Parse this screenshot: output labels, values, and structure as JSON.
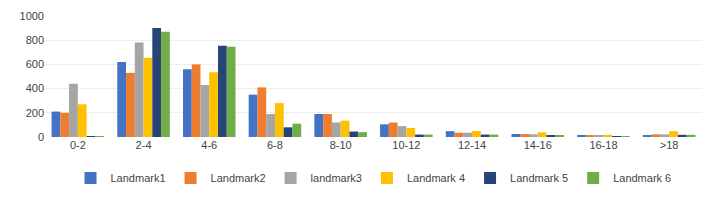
{
  "chart_data": {
    "type": "bar",
    "categories": [
      "0-2",
      "2-4",
      "4-6",
      "6-8",
      "8-10",
      "10-12",
      "12-14",
      "14-16",
      "16-18",
      ">18"
    ],
    "series": [
      {
        "name": "Landmark1",
        "color": "#4472C4",
        "values": [
          210,
          620,
          560,
          350,
          190,
          105,
          48,
          25,
          10,
          15
        ]
      },
      {
        "name": "Landmark2",
        "color": "#ED7D31",
        "values": [
          200,
          530,
          600,
          410,
          190,
          120,
          35,
          25,
          12,
          22
        ]
      },
      {
        "name": "landmark3",
        "color": "#A5A5A5",
        "values": [
          440,
          780,
          430,
          190,
          120,
          90,
          35,
          22,
          12,
          22
        ]
      },
      {
        "name": "Landmark 4",
        "color": "#FFC000",
        "values": [
          270,
          655,
          535,
          280,
          135,
          75,
          50,
          38,
          18,
          48
        ]
      },
      {
        "name": "Landmark 5",
        "color": "#264478",
        "values": [
          8,
          900,
          755,
          80,
          45,
          20,
          20,
          12,
          8,
          18
        ]
      },
      {
        "name": "Landmark 6",
        "color": "#70AD47",
        "values": [
          8,
          870,
          745,
          110,
          40,
          20,
          20,
          12,
          8,
          18
        ]
      }
    ],
    "ylim": [
      0,
      1000
    ],
    "yticks": [
      0,
      200,
      400,
      600,
      800,
      1000
    ],
    "grid": true,
    "legend": "bottom"
  }
}
